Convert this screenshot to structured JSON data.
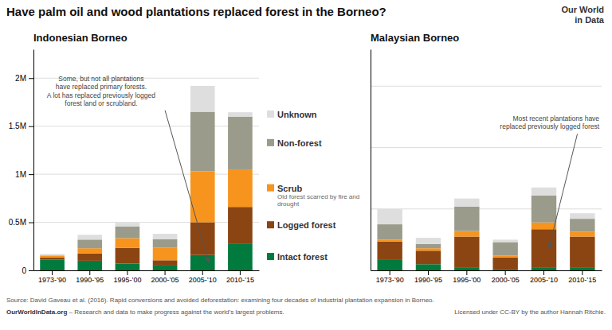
{
  "title": "Have palm oil and wood plantations replaced forest in the Borneo?",
  "annotations": [
    "Source: David Gaveau et al. (2016). Rapid conversions and avoided deforestation: examining four decades of industrial plantation expansion in Borneo.",
    "OurWorldInData.org",
    " – Research and data to make progress against the world’s largest problems.",
    "Licensed under CC-BY by the author Hannah Ritchie.",
    "Our World",
    "in Data"
  ],
  "chart_data": [
    {
      "type": "bar",
      "stacked": true,
      "title": "Indonesian Borneo",
      "categories": [
        "1973-’90",
        "1990-’95",
        "1995-’00",
        "2000-’05",
        "2005-’10",
        "2010-’15"
      ],
      "series": [
        {
          "name": "Intact forest",
          "color": "#007A3D",
          "values": [
            110000,
            100000,
            70000,
            50000,
            160000,
            280000
          ]
        },
        {
          "name": "Logged forest",
          "color": "#8B4513",
          "values": [
            25000,
            75000,
            165000,
            55000,
            340000,
            380000
          ]
        },
        {
          "name": "Scrub",
          "color": "#F7941D",
          "values": [
            15000,
            55000,
            100000,
            130000,
            530000,
            390000
          ]
        },
        {
          "name": "Non-forest",
          "color": "#9B9B8C",
          "values": [
            5000,
            90000,
            120000,
            90000,
            620000,
            550000
          ]
        },
        {
          "name": "Unknown",
          "color": "#DEDEDE",
          "values": [
            15000,
            50000,
            40000,
            55000,
            270000,
            45000
          ]
        }
      ],
      "ylim": [
        0,
        2300000
      ],
      "yticks": [
        0,
        {
          "value": 500000,
          "label": "0.5M"
        },
        {
          "value": 1000000,
          "label": "1M"
        },
        {
          "value": 1500000,
          "label": "1.5M"
        },
        {
          "value": 2000000,
          "label": "2M"
        }
      ],
      "grid": true,
      "legend": "right",
      "annotations": [
        "Some, but not all plantations\nhave replaced primary forests.\nA lot has replaced previously logged\nforest land or scrubland.",
        "Old forest scarred by fire and drought"
      ]
    },
    {
      "type": "bar",
      "stacked": true,
      "title": "Malaysian Borneo",
      "categories": [
        "1973-’90",
        "1990-’95",
        "1995-’00",
        "2000-’05",
        "2005-’10",
        "2010-’15"
      ],
      "series": [
        {
          "color": "#007A3D",
          "values": [
            90000,
            50000,
            25000,
            5000,
            25000,
            25000
          ]
        },
        {
          "color": "#8B4513",
          "values": [
            145000,
            110000,
            250000,
            100000,
            310000,
            250000
          ]
        },
        {
          "color": "#F7941D",
          "values": [
            15000,
            20000,
            45000,
            15000,
            55000,
            40000
          ]
        },
        {
          "color": "#9B9B8C",
          "values": [
            125000,
            35000,
            200000,
            110000,
            220000,
            105000
          ]
        },
        {
          "color": "#DEDEDE",
          "values": [
            125000,
            50000,
            65000,
            20000,
            65000,
            45000
          ]
        }
      ],
      "ylim": [
        0,
        1800000
      ],
      "yticks": [
        0,
        500000,
        1000000,
        1500000
      ],
      "grid": true,
      "tick_labels": "x",
      "annotations": [
        "Most recent plantations have\nreplaced previously logged forest"
      ]
    }
  ]
}
